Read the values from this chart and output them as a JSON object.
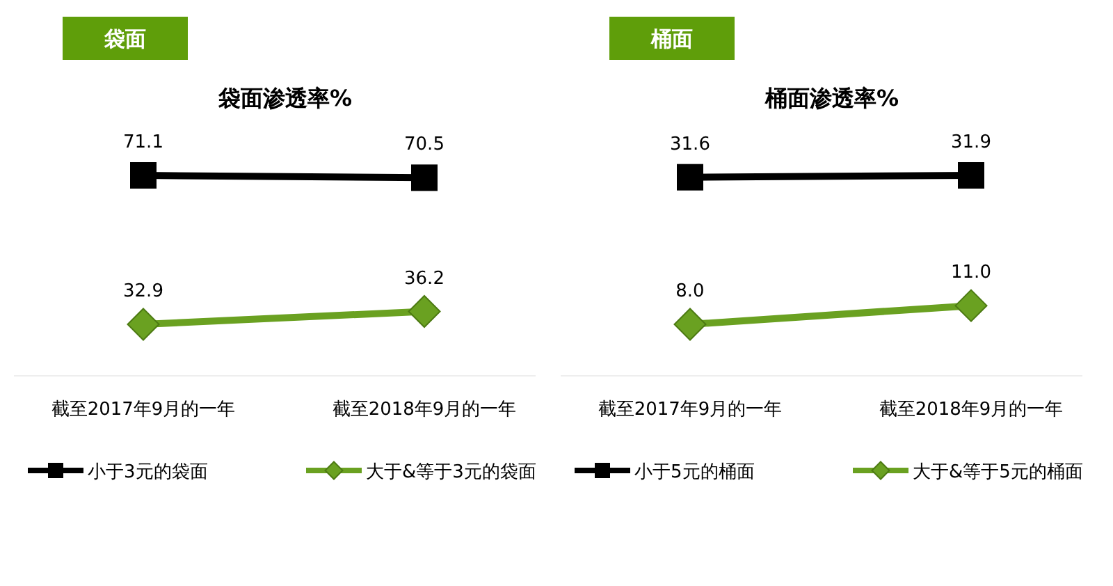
{
  "chart_data": [
    {
      "type": "line",
      "title": "袋面",
      "subtitle": "袋面渗透率%",
      "categories": [
        "截至2017年9月的一年",
        "截至2018年9月的一年"
      ],
      "data_labels": true,
      "legend": "bottom",
      "series": [
        {
          "name": "小于3元的袋面",
          "color": "#000000",
          "marker": "square",
          "values": [
            71.1,
            70.5
          ]
        },
        {
          "name": "大于&等于3元的袋面",
          "color": "#6aa121",
          "marker": "diamond",
          "values": [
            32.9,
            36.2
          ]
        }
      ]
    },
    {
      "type": "line",
      "title": "桶面",
      "subtitle": "桶面渗透率%",
      "categories": [
        "截至2017年9月的一年",
        "截至2018年9月的一年"
      ],
      "data_labels": true,
      "legend": "bottom",
      "series": [
        {
          "name": "小于5元的桶面",
          "color": "#000000",
          "marker": "square",
          "values": [
            31.6,
            31.9
          ]
        },
        {
          "name": "大于&等于5元的桶面",
          "color": "#6aa121",
          "marker": "diamond",
          "values": [
            8.0,
            11.0
          ],
          "value_labels": [
            "8.0",
            "11.0"
          ]
        }
      ]
    }
  ]
}
